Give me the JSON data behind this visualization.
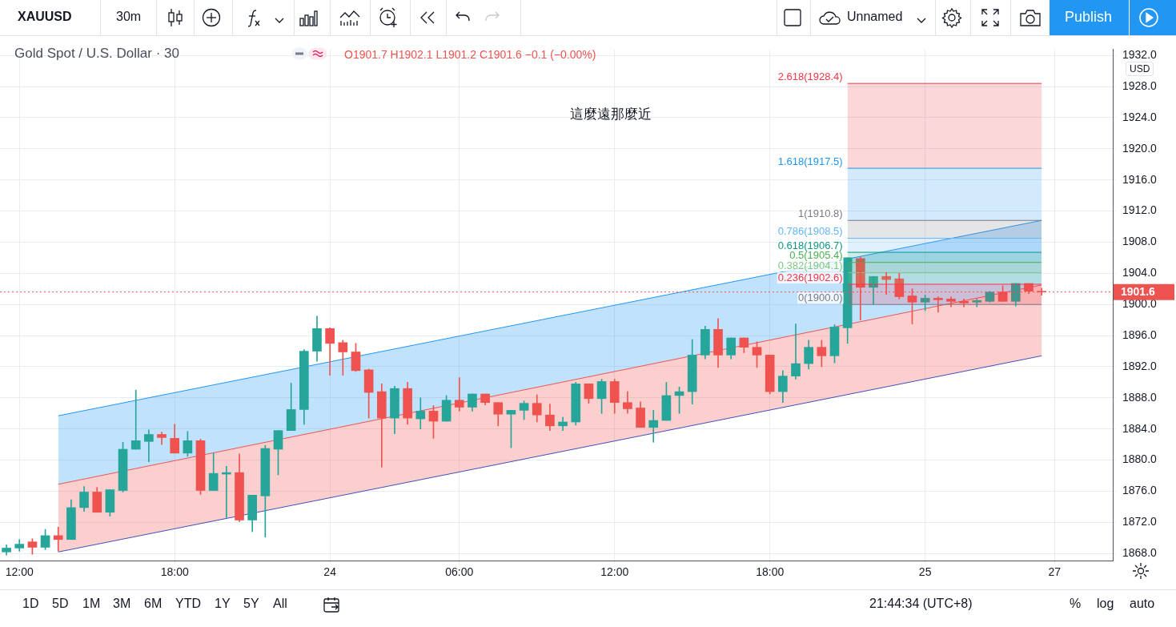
{
  "chart_data": {
    "type": "candlestick",
    "title": "Gold Spot / U.S. Dollar · 30",
    "annotations": [
      "XAUUSD",
      "30m",
      "Unnamed",
      "Publish",
      "O1901.7 H1902.1 L1901.2 C1901.6 −0.1 (−0.00%)",
      "這麼遠那麼近",
      "USD",
      "1D",
      "5D",
      "1M",
      "3M",
      "6M",
      "YTD",
      "1Y",
      "5Y",
      "All",
      "21:44:34 (UTC+8)",
      "%",
      "log",
      "auto"
    ],
    "categories": [
      null,
      "12:00",
      null,
      null,
      null,
      null,
      null,
      null,
      null,
      null,
      null,
      null,
      null,
      "18:00",
      null,
      null,
      null,
      null,
      null,
      null,
      null,
      null,
      null,
      null,
      null,
      "24",
      null,
      null,
      null,
      null,
      null,
      null,
      null,
      null,
      null,
      "06:00",
      null,
      null,
      null,
      null,
      null,
      null,
      null,
      null,
      null,
      null,
      null,
      "12:00",
      null,
      null,
      null,
      null,
      null,
      null,
      null,
      null,
      null,
      null,
      null,
      "18:00",
      null,
      null,
      null,
      null,
      null,
      null,
      null,
      null,
      null,
      null,
      null,
      "25",
      null,
      null,
      null,
      null,
      null,
      null,
      null,
      null,
      null,
      "27",
      null,
      null,
      null,
      null
    ],
    "ohlc": [
      [
        1868.2,
        1869.1,
        1867.8,
        1868.7
      ],
      [
        1868.7,
        1869.8,
        1868.3,
        1869.2
      ],
      [
        1869.5,
        1869.9,
        1867.9,
        1868.8
      ],
      [
        1868.8,
        1871.1,
        1868.5,
        1870.3
      ],
      [
        1870.3,
        1871.4,
        1868.3,
        1869.8
      ],
      [
        1869.8,
        1874.9,
        1869.8,
        1873.9
      ],
      [
        1873.9,
        1876.6,
        1873.4,
        1875.9
      ],
      [
        1875.9,
        1876.5,
        1873.3,
        1873.3
      ],
      [
        1873.3,
        1876.2,
        1872.8,
        1876.2
      ],
      [
        1876.1,
        1882.3,
        1875.9,
        1881.4
      ],
      [
        1881.4,
        1889.0,
        1881.4,
        1882.5
      ],
      [
        1882.4,
        1883.9,
        1879.8,
        1883.3
      ],
      [
        1883.3,
        1883.6,
        1882.0,
        1882.9
      ],
      [
        1882.8,
        1884.6,
        1880.9,
        1880.9
      ],
      [
        1880.9,
        1883.7,
        1880.5,
        1882.5
      ],
      [
        1882.5,
        1882.7,
        1875.6,
        1876.1
      ],
      [
        1876.1,
        1880.9,
        1876.1,
        1878.3
      ],
      [
        1878.2,
        1879.2,
        1872.6,
        1878.4
      ],
      [
        1878.4,
        1880.8,
        1872.1,
        1872.3
      ],
      [
        1872.3,
        1875.5,
        1870.8,
        1875.5
      ],
      [
        1875.4,
        1881.9,
        1870.1,
        1881.5
      ],
      [
        1881.4,
        1883.8,
        1878.1,
        1883.8
      ],
      [
        1883.8,
        1889.9,
        1883.8,
        1886.5
      ],
      [
        1886.5,
        1894.2,
        1884.6,
        1894.0
      ],
      [
        1894.0,
        1898.5,
        1892.7,
        1896.9
      ],
      [
        1896.9,
        1897.0,
        1890.9,
        1895.0
      ],
      [
        1895.1,
        1895.4,
        1890.9,
        1893.9
      ],
      [
        1893.9,
        1895.0,
        1891.4,
        1891.5
      ],
      [
        1891.6,
        1891.7,
        1885.4,
        1888.7
      ],
      [
        1888.8,
        1889.8,
        1879.1,
        1885.4
      ],
      [
        1885.4,
        1889.5,
        1883.4,
        1889.2
      ],
      [
        1889.2,
        1890.0,
        1884.6,
        1885.4
      ],
      [
        1885.3,
        1888.0,
        1884.0,
        1886.3
      ],
      [
        1886.3,
        1887.0,
        1882.8,
        1885.0
      ],
      [
        1885.0,
        1888.3,
        1885.0,
        1887.7
      ],
      [
        1887.7,
        1890.6,
        1886.3,
        1886.8
      ],
      [
        1886.8,
        1888.5,
        1886.3,
        1888.5
      ],
      [
        1888.5,
        1888.5,
        1887.1,
        1887.4
      ],
      [
        1887.4,
        1887.4,
        1884.4,
        1885.9
      ],
      [
        1885.9,
        1886.4,
        1881.6,
        1886.4
      ],
      [
        1886.4,
        1887.6,
        1885.2,
        1887.3
      ],
      [
        1887.3,
        1888.4,
        1884.9,
        1885.8
      ],
      [
        1885.8,
        1887.2,
        1883.8,
        1884.4
      ],
      [
        1884.4,
        1885.5,
        1883.8,
        1884.9
      ],
      [
        1884.9,
        1890.0,
        1884.5,
        1889.8
      ],
      [
        1889.8,
        1889.8,
        1887.3,
        1887.9
      ],
      [
        1887.9,
        1890.4,
        1886.0,
        1890.1
      ],
      [
        1890.1,
        1890.4,
        1886.0,
        1887.4
      ],
      [
        1887.4,
        1888.8,
        1886.0,
        1886.6
      ],
      [
        1886.7,
        1887.5,
        1884.2,
        1884.2
      ],
      [
        1884.2,
        1886.4,
        1882.3,
        1885.1
      ],
      [
        1885.1,
        1890.0,
        1885.1,
        1888.3
      ],
      [
        1888.3,
        1889.4,
        1886.0,
        1888.8
      ],
      [
        1888.8,
        1895.5,
        1887.2,
        1893.5
      ],
      [
        1893.5,
        1897.2,
        1893.0,
        1896.8
      ],
      [
        1896.8,
        1898.2,
        1891.9,
        1893.5
      ],
      [
        1893.5,
        1895.7,
        1893.0,
        1895.7
      ],
      [
        1895.7,
        1895.7,
        1893.8,
        1894.5
      ],
      [
        1894.5,
        1895.2,
        1891.9,
        1893.5
      ],
      [
        1893.5,
        1893.5,
        1888.5,
        1888.8
      ],
      [
        1888.8,
        1891.5,
        1887.4,
        1890.8
      ],
      [
        1890.8,
        1897.5,
        1890.4,
        1892.4
      ],
      [
        1892.4,
        1895.4,
        1891.7,
        1894.5
      ],
      [
        1894.5,
        1895.4,
        1892.0,
        1893.4
      ],
      [
        1893.4,
        1897.4,
        1892.5,
        1897.1
      ],
      [
        1897.0,
        1906.0,
        1895.0,
        1906.0
      ],
      [
        1905.9,
        1906.1,
        1898.0,
        1902.2
      ],
      [
        1902.2,
        1903.6,
        1900.0,
        1903.6
      ],
      [
        1903.6,
        1904.1,
        1901.3,
        1903.2
      ],
      [
        1903.3,
        1904.0,
        1900.7,
        1901.0
      ],
      [
        1901.1,
        1902.0,
        1897.5,
        1900.3
      ],
      [
        1900.3,
        1901.2,
        1899.2,
        1900.8
      ],
      [
        1900.8,
        1901.0,
        1899.0,
        1900.6
      ],
      [
        1900.7,
        1901.0,
        1899.7,
        1900.4
      ],
      [
        1900.4,
        1900.7,
        1899.7,
        1900.2
      ],
      [
        1900.3,
        1900.7,
        1899.7,
        1900.5
      ],
      [
        1900.4,
        1901.7,
        1900.3,
        1901.6
      ],
      [
        1901.6,
        1902.4,
        1900.4,
        1900.4
      ],
      [
        1900.4,
        1902.7,
        1899.8,
        1902.7
      ],
      [
        1902.7,
        1902.7,
        1901.4,
        1901.7
      ],
      [
        1901.7,
        1902.1,
        1901.2,
        1901.6
      ],
      null,
      null,
      null,
      null,
      null
    ],
    "series": [
      {
        "type": "line",
        "color": "#3f51b5",
        "values": [
          null,
          null,
          null,
          null,
          1868.2,
          null,
          null,
          null,
          null,
          null,
          null,
          null,
          null,
          null,
          null,
          null,
          null,
          null,
          null,
          null,
          null,
          null,
          null,
          null,
          null,
          null,
          null,
          null,
          null,
          null,
          null,
          null,
          null,
          null,
          null,
          null,
          null,
          null,
          null,
          null,
          null,
          null,
          null,
          null,
          null,
          null,
          null,
          null,
          null,
          null,
          null,
          null,
          null,
          null,
          null,
          null,
          null,
          null,
          null,
          null,
          null,
          null,
          null,
          null,
          null,
          null,
          null,
          null,
          null,
          null,
          null,
          null,
          null,
          null,
          null,
          null,
          null,
          null,
          null,
          null,
          1893.4,
          null,
          null,
          null,
          null,
          null
        ]
      },
      {
        "type": "area",
        "color": "#ef5350",
        "values": [
          null,
          null,
          null,
          null,
          1876.9,
          null,
          null,
          null,
          null,
          null,
          null,
          null,
          null,
          null,
          null,
          null,
          null,
          null,
          null,
          null,
          null,
          null,
          null,
          null,
          null,
          null,
          null,
          null,
          null,
          null,
          null,
          null,
          null,
          null,
          null,
          null,
          null,
          null,
          null,
          null,
          null,
          null,
          null,
          null,
          null,
          null,
          null,
          null,
          null,
          null,
          null,
          null,
          null,
          null,
          null,
          null,
          null,
          null,
          null,
          null,
          null,
          null,
          null,
          null,
          null,
          null,
          null,
          null,
          null,
          null,
          null,
          null,
          null,
          null,
          null,
          null,
          null,
          null,
          null,
          null,
          1902.5,
          null,
          null,
          null,
          null,
          null
        ]
      },
      {
        "type": "area",
        "color": "#2196f3",
        "values": [
          null,
          null,
          null,
          null,
          1885.7,
          null,
          null,
          null,
          null,
          null,
          null,
          null,
          null,
          null,
          null,
          null,
          null,
          null,
          null,
          null,
          null,
          null,
          null,
          null,
          null,
          null,
          null,
          null,
          null,
          null,
          null,
          null,
          null,
          null,
          null,
          null,
          null,
          null,
          null,
          null,
          null,
          null,
          null,
          null,
          null,
          null,
          null,
          null,
          null,
          null,
          null,
          null,
          null,
          null,
          null,
          null,
          null,
          null,
          null,
          null,
          null,
          null,
          null,
          null,
          null,
          null,
          null,
          null,
          null,
          null,
          null,
          null,
          null,
          null,
          null,
          null,
          null,
          null,
          null,
          null,
          1910.8,
          null,
          null,
          null,
          null,
          null
        ]
      },
      {
        "type": "line",
        "name": "0(1900.0)",
        "color": "#787b86",
        "values": [
          null,
          null,
          null,
          null,
          null,
          null,
          null,
          null,
          null,
          null,
          null,
          null,
          null,
          null,
          null,
          null,
          null,
          null,
          null,
          null,
          null,
          null,
          null,
          null,
          null,
          null,
          null,
          null,
          null,
          null,
          null,
          null,
          null,
          null,
          null,
          null,
          null,
          null,
          null,
          null,
          null,
          null,
          null,
          null,
          null,
          null,
          null,
          null,
          null,
          null,
          null,
          null,
          null,
          null,
          null,
          null,
          null,
          null,
          null,
          null,
          null,
          null,
          null,
          null,
          null,
          1900.0,
          null,
          null,
          null,
          null,
          null,
          null,
          null,
          null,
          null,
          null,
          null,
          null,
          null,
          null,
          1900.0,
          null,
          null,
          null,
          null,
          null
        ]
      },
      {
        "type": "area",
        "name": "0.236(1902.6)",
        "color": "#f23645",
        "values": [
          null,
          null,
          null,
          null,
          null,
          null,
          null,
          null,
          null,
          null,
          null,
          null,
          null,
          null,
          null,
          null,
          null,
          null,
          null,
          null,
          null,
          null,
          null,
          null,
          null,
          null,
          null,
          null,
          null,
          null,
          null,
          null,
          null,
          null,
          null,
          null,
          null,
          null,
          null,
          null,
          null,
          null,
          null,
          null,
          null,
          null,
          null,
          null,
          null,
          null,
          null,
          null,
          null,
          null,
          null,
          null,
          null,
          null,
          null,
          null,
          null,
          null,
          null,
          null,
          null,
          1902.6,
          null,
          null,
          null,
          null,
          null,
          null,
          null,
          null,
          null,
          null,
          null,
          null,
          null,
          null,
          1902.6,
          null,
          null,
          null,
          null,
          null
        ]
      },
      {
        "type": "area",
        "name": "0.382(1904.1)",
        "color": "#81c784",
        "values": [
          null,
          null,
          null,
          null,
          null,
          null,
          null,
          null,
          null,
          null,
          null,
          null,
          null,
          null,
          null,
          null,
          null,
          null,
          null,
          null,
          null,
          null,
          null,
          null,
          null,
          null,
          null,
          null,
          null,
          null,
          null,
          null,
          null,
          null,
          null,
          null,
          null,
          null,
          null,
          null,
          null,
          null,
          null,
          null,
          null,
          null,
          null,
          null,
          null,
          null,
          null,
          null,
          null,
          null,
          null,
          null,
          null,
          null,
          null,
          null,
          null,
          null,
          null,
          null,
          null,
          1904.1,
          null,
          null,
          null,
          null,
          null,
          null,
          null,
          null,
          null,
          null,
          null,
          null,
          null,
          null,
          1904.1,
          null,
          null,
          null,
          null,
          null
        ]
      },
      {
        "type": "area",
        "name": "0.5(1905.4)",
        "color": "#4caf50",
        "values": [
          null,
          null,
          null,
          null,
          null,
          null,
          null,
          null,
          null,
          null,
          null,
          null,
          null,
          null,
          null,
          null,
          null,
          null,
          null,
          null,
          null,
          null,
          null,
          null,
          null,
          null,
          null,
          null,
          null,
          null,
          null,
          null,
          null,
          null,
          null,
          null,
          null,
          null,
          null,
          null,
          null,
          null,
          null,
          null,
          null,
          null,
          null,
          null,
          null,
          null,
          null,
          null,
          null,
          null,
          null,
          null,
          null,
          null,
          null,
          null,
          null,
          null,
          null,
          null,
          null,
          1905.4,
          null,
          null,
          null,
          null,
          null,
          null,
          null,
          null,
          null,
          null,
          null,
          null,
          null,
          null,
          1905.4,
          null,
          null,
          null,
          null,
          null
        ]
      },
      {
        "type": "area",
        "name": "0.618(1906.7)",
        "color": "#089981",
        "values": [
          null,
          null,
          null,
          null,
          null,
          null,
          null,
          null,
          null,
          null,
          null,
          null,
          null,
          null,
          null,
          null,
          null,
          null,
          null,
          null,
          null,
          null,
          null,
          null,
          null,
          null,
          null,
          null,
          null,
          null,
          null,
          null,
          null,
          null,
          null,
          null,
          null,
          null,
          null,
          null,
          null,
          null,
          null,
          null,
          null,
          null,
          null,
          null,
          null,
          null,
          null,
          null,
          null,
          null,
          null,
          null,
          null,
          null,
          null,
          null,
          null,
          null,
          null,
          null,
          null,
          1906.7,
          null,
          null,
          null,
          null,
          null,
          null,
          null,
          null,
          null,
          null,
          null,
          null,
          null,
          null,
          1906.7,
          null,
          null,
          null,
          null,
          null
        ]
      },
      {
        "type": "area",
        "name": "0.786(1908.5)",
        "color": "#64b5f6",
        "values": [
          null,
          null,
          null,
          null,
          null,
          null,
          null,
          null,
          null,
          null,
          null,
          null,
          null,
          null,
          null,
          null,
          null,
          null,
          null,
          null,
          null,
          null,
          null,
          null,
          null,
          null,
          null,
          null,
          null,
          null,
          null,
          null,
          null,
          null,
          null,
          null,
          null,
          null,
          null,
          null,
          null,
          null,
          null,
          null,
          null,
          null,
          null,
          null,
          null,
          null,
          null,
          null,
          null,
          null,
          null,
          null,
          null,
          null,
          null,
          null,
          null,
          null,
          null,
          null,
          null,
          1908.5,
          null,
          null,
          null,
          null,
          null,
          null,
          null,
          null,
          null,
          null,
          null,
          null,
          null,
          null,
          1908.5,
          null,
          null,
          null,
          null,
          null
        ]
      },
      {
        "type": "area",
        "name": "1(1910.8)",
        "color": "#787b86",
        "values": [
          null,
          null,
          null,
          null,
          null,
          null,
          null,
          null,
          null,
          null,
          null,
          null,
          null,
          null,
          null,
          null,
          null,
          null,
          null,
          null,
          null,
          null,
          null,
          null,
          null,
          null,
          null,
          null,
          null,
          null,
          null,
          null,
          null,
          null,
          null,
          null,
          null,
          null,
          null,
          null,
          null,
          null,
          null,
          null,
          null,
          null,
          null,
          null,
          null,
          null,
          null,
          null,
          null,
          null,
          null,
          null,
          null,
          null,
          null,
          null,
          null,
          null,
          null,
          null,
          null,
          1910.8,
          null,
          null,
          null,
          null,
          null,
          null,
          null,
          null,
          null,
          null,
          null,
          null,
          null,
          null,
          1910.8,
          null,
          null,
          null,
          null,
          null
        ]
      },
      {
        "type": "area",
        "name": "1.618(1917.5)",
        "color": "#2196f3",
        "values": [
          null,
          null,
          null,
          null,
          null,
          null,
          null,
          null,
          null,
          null,
          null,
          null,
          null,
          null,
          null,
          null,
          null,
          null,
          null,
          null,
          null,
          null,
          null,
          null,
          null,
          null,
          null,
          null,
          null,
          null,
          null,
          null,
          null,
          null,
          null,
          null,
          null,
          null,
          null,
          null,
          null,
          null,
          null,
          null,
          null,
          null,
          null,
          null,
          null,
          null,
          null,
          null,
          null,
          null,
          null,
          null,
          null,
          null,
          null,
          null,
          null,
          null,
          null,
          null,
          null,
          1917.5,
          null,
          null,
          null,
          null,
          null,
          null,
          null,
          null,
          null,
          null,
          null,
          null,
          null,
          null,
          1917.5,
          null,
          null,
          null,
          null,
          null
        ]
      },
      {
        "type": "area",
        "name": "2.618(1928.4)",
        "color": "#f23645",
        "values": [
          null,
          null,
          null,
          null,
          null,
          null,
          null,
          null,
          null,
          null,
          null,
          null,
          null,
          null,
          null,
          null,
          null,
          null,
          null,
          null,
          null,
          null,
          null,
          null,
          null,
          null,
          null,
          null,
          null,
          null,
          null,
          null,
          null,
          null,
          null,
          null,
          null,
          null,
          null,
          null,
          null,
          null,
          null,
          null,
          null,
          null,
          null,
          null,
          null,
          null,
          null,
          null,
          null,
          null,
          null,
          null,
          null,
          null,
          null,
          null,
          null,
          null,
          null,
          null,
          null,
          1928.4,
          null,
          null,
          null,
          null,
          null,
          null,
          null,
          null,
          null,
          null,
          null,
          null,
          null,
          null,
          1928.4,
          null,
          null,
          null,
          null,
          null
        ]
      }
    ],
    "ref_lines": [
      {
        "axis": "y",
        "value": 1901.6,
        "label": "1901.6",
        "color": "#ef5350",
        "line_style": "dotted"
      }
    ],
    "ylim": [
      1867.1,
      1932.8
    ],
    "yticks": [
      {
        "value": 1868,
        "label": "1868.0"
      },
      {
        "value": 1872,
        "label": "1872.0"
      },
      {
        "value": 1876,
        "label": "1876.0"
      },
      {
        "value": 1880,
        "label": "1880.0"
      },
      {
        "value": 1884,
        "label": "1884.0"
      },
      {
        "value": 1888,
        "label": "1888.0"
      },
      {
        "value": 1892,
        "label": "1892.0"
      },
      {
        "value": 1896,
        "label": "1896.0"
      },
      {
        "value": 1900,
        "label": "1900.0"
      },
      {
        "value": 1904,
        "label": "1904.0"
      },
      {
        "value": 1908,
        "label": "1908.0"
      },
      {
        "value": 1912,
        "label": "1912.0"
      },
      {
        "value": 1916,
        "label": "1916.0"
      },
      {
        "value": 1920,
        "label": "1920.0"
      },
      {
        "value": 1924,
        "label": "1924.0"
      },
      {
        "value": 1928,
        "label": "1928.0"
      },
      {
        "value": 1932,
        "label": "1932.0"
      }
    ],
    "grid": true
  }
}
